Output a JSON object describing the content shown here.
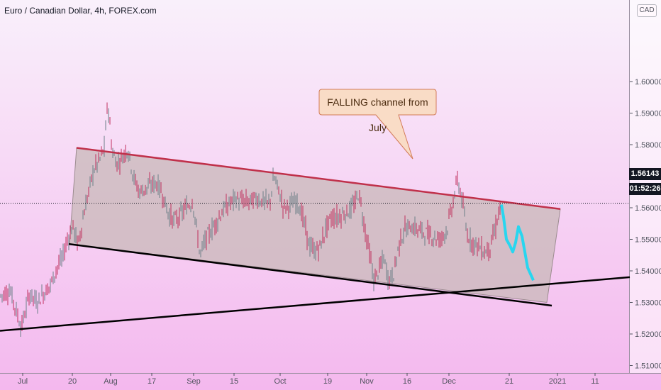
{
  "header": {
    "title": "Euro / Canadian Dollar, 4h, FOREX.com",
    "currency": "CAD"
  },
  "price_label": {
    "price": "1.56143",
    "countdown": "01:52:26"
  },
  "annotation": {
    "text": "FALLING channel from July"
  },
  "colors": {
    "background_top": "#f9f0fb",
    "background_bottom": "#f4b8ee",
    "candle_up": "#6b7f87",
    "candle_down": "#c0305e",
    "channel_fill": "#c8b8b8",
    "channel_top_line": "#c0304a",
    "support_line": "#000000",
    "projection": "#28d6ef",
    "callout_fill": "#f9dcc6",
    "callout_border": "#d27b58"
  },
  "chart_data": {
    "type": "candlestick",
    "symbol": "EURCAD",
    "timeframe": "4h",
    "source": "FOREX.com",
    "ylim": [
      1.508,
      1.605
    ],
    "x_ticks": [
      "Jul",
      "20",
      "Aug",
      "17",
      "Sep",
      "15",
      "Oct",
      "19",
      "Nov",
      "16",
      "Dec",
      "21",
      "2021",
      "11"
    ],
    "y_ticks": [
      "1.51000",
      "1.52000",
      "1.53000",
      "1.54000",
      "1.55000",
      "1.56000",
      "1.57000",
      "1.58000",
      "1.59000",
      "1.60000"
    ],
    "last_price": 1.56143,
    "price_path": [
      [
        0,
        1.532
      ],
      [
        14,
        1.534
      ],
      [
        30,
        1.522
      ],
      [
        42,
        1.533
      ],
      [
        52,
        1.53
      ],
      [
        62,
        1.533
      ],
      [
        72,
        1.536
      ],
      [
        80,
        1.541
      ],
      [
        88,
        1.544
      ],
      [
        95,
        1.55
      ],
      [
        103,
        1.554
      ],
      [
        110,
        1.548
      ],
      [
        118,
        1.558
      ],
      [
        125,
        1.565
      ],
      [
        132,
        1.572
      ],
      [
        140,
        1.575
      ],
      [
        147,
        1.579
      ],
      [
        152,
        1.594
      ],
      [
        158,
        1.578
      ],
      [
        165,
        1.574
      ],
      [
        172,
        1.576
      ],
      [
        180,
        1.579
      ],
      [
        188,
        1.57
      ],
      [
        196,
        1.565
      ],
      [
        204,
        1.566
      ],
      [
        212,
        1.567
      ],
      [
        220,
        1.568
      ],
      [
        228,
        1.565
      ],
      [
        236,
        1.559
      ],
      [
        244,
        1.556
      ],
      [
        252,
        1.557
      ],
      [
        262,
        1.56
      ],
      [
        272,
        1.562
      ],
      [
        282,
        1.545
      ],
      [
        290,
        1.55
      ],
      [
        298,
        1.553
      ],
      [
        306,
        1.556
      ],
      [
        314,
        1.559
      ],
      [
        322,
        1.561
      ],
      [
        332,
        1.563
      ],
      [
        342,
        1.562
      ],
      [
        352,
        1.562
      ],
      [
        362,
        1.563
      ],
      [
        372,
        1.562
      ],
      [
        380,
        1.561
      ],
      [
        386,
        1.57
      ],
      [
        392,
        1.566
      ],
      [
        400,
        1.56
      ],
      [
        410,
        1.561
      ],
      [
        420,
        1.562
      ],
      [
        428,
        1.556
      ],
      [
        436,
        1.548
      ],
      [
        444,
        1.546
      ],
      [
        452,
        1.548
      ],
      [
        460,
        1.554
      ],
      [
        468,
        1.557
      ],
      [
        476,
        1.557
      ],
      [
        484,
        1.558
      ],
      [
        492,
        1.559
      ],
      [
        500,
        1.561
      ],
      [
        506,
        1.565
      ],
      [
        514,
        1.554
      ],
      [
        520,
        1.547
      ],
      [
        527,
        1.537
      ],
      [
        534,
        1.54
      ],
      [
        541,
        1.544
      ],
      [
        548,
        1.537
      ],
      [
        555,
        1.539
      ],
      [
        562,
        1.548
      ],
      [
        570,
        1.553
      ],
      [
        580,
        1.554
      ],
      [
        590,
        1.553
      ],
      [
        600,
        1.552
      ],
      [
        610,
        1.551
      ],
      [
        620,
        1.55
      ],
      [
        630,
        1.553
      ],
      [
        638,
        1.561
      ],
      [
        645,
        1.569
      ],
      [
        652,
        1.562
      ],
      [
        658,
        1.552
      ],
      [
        666,
        1.549
      ],
      [
        674,
        1.548
      ],
      [
        682,
        1.546
      ],
      [
        690,
        1.547
      ],
      [
        698,
        1.553
      ],
      [
        706,
        1.561
      ]
    ],
    "projection_path": [
      [
        707,
        1.561
      ],
      [
        710,
        1.557
      ],
      [
        714,
        1.55
      ],
      [
        719,
        1.548
      ],
      [
        723,
        1.546
      ],
      [
        727,
        1.549
      ],
      [
        731,
        1.554
      ],
      [
        736,
        1.551
      ],
      [
        740,
        1.546
      ],
      [
        744,
        1.541
      ],
      [
        748,
        1.539
      ],
      [
        752,
        1.537
      ]
    ],
    "channel_top": [
      [
        108,
        1.579
      ],
      [
        790,
        1.5596
      ]
    ],
    "channel_bottom": [
      [
        97,
        1.5485
      ],
      [
        778,
        1.529
      ]
    ],
    "support_line": [
      [
        0,
        1.521
      ],
      [
        888,
        1.538
      ]
    ],
    "channel_polygon": [
      [
        108,
        1.579
      ],
      [
        790,
        1.5596
      ],
      [
        771,
        1.53
      ],
      [
        98,
        1.5485
      ]
    ]
  }
}
